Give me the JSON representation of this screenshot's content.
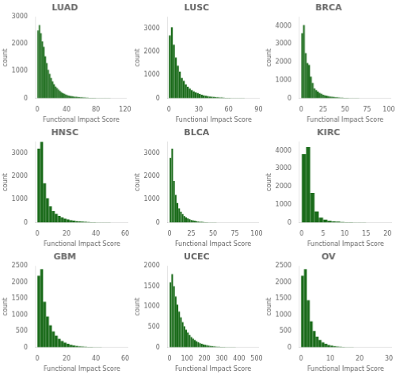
{
  "chart_data": [
    {
      "type": "histogram",
      "title": "LUAD",
      "xlabel": "Functional Impact Score",
      "ylabel": "count",
      "color": "#1a6b1a",
      "grid": false,
      "xlim": [
        -2,
        122
      ],
      "ylim": [
        0,
        3000
      ],
      "xticks": [
        0,
        40,
        80,
        120
      ],
      "yticks": [
        0,
        1000,
        2000,
        3000
      ],
      "bins": [
        0,
        2,
        4,
        6,
        8,
        10,
        12,
        14,
        16,
        18,
        20,
        22,
        24,
        26,
        28,
        30,
        32,
        34,
        36,
        38,
        40,
        42,
        44,
        46,
        48,
        50,
        52,
        54,
        56,
        58,
        60,
        62,
        64,
        66,
        68,
        70,
        72,
        74,
        76,
        78,
        80,
        82,
        84,
        86,
        88,
        90,
        92,
        94,
        96,
        98,
        100,
        102,
        104,
        106,
        108,
        110,
        112,
        114,
        116,
        118,
        120
      ],
      "values": [
        2500,
        2700,
        2400,
        2100,
        1900,
        1550,
        1300,
        1050,
        900,
        750,
        620,
        520,
        430,
        380,
        320,
        270,
        230,
        190,
        165,
        140,
        120,
        105,
        90,
        80,
        70,
        62,
        55,
        48,
        42,
        38,
        33,
        29,
        26,
        23,
        20,
        18,
        16,
        14,
        12,
        11,
        10,
        9,
        8,
        7,
        6,
        6,
        5,
        5,
        4,
        4,
        3,
        3,
        3,
        2,
        2,
        2,
        2,
        1,
        1,
        1
      ]
    },
    {
      "type": "histogram",
      "title": "LUSC",
      "xlabel": "Functional Impact Score",
      "ylabel": "count",
      "color": "#1a6b1a",
      "grid": false,
      "xlim": [
        -1,
        91
      ],
      "ylim": [
        0,
        3500
      ],
      "xticks": [
        0,
        30,
        60,
        90
      ],
      "yticks": [
        0,
        1000,
        2000,
        3000
      ],
      "bins": [
        0,
        2,
        4,
        6,
        8,
        10,
        12,
        14,
        16,
        18,
        20,
        22,
        24,
        26,
        28,
        30,
        32,
        34,
        36,
        38,
        40,
        42,
        44,
        46,
        48,
        50,
        52,
        54,
        56,
        58,
        60,
        62,
        64,
        66,
        68,
        70,
        72,
        74,
        76,
        78,
        80,
        82,
        84,
        86,
        88,
        90
      ],
      "values": [
        2700,
        3050,
        2300,
        1750,
        1400,
        1150,
        870,
        750,
        600,
        500,
        420,
        350,
        300,
        260,
        220,
        185,
        155,
        130,
        110,
        95,
        80,
        68,
        58,
        50,
        42,
        36,
        30,
        25,
        21,
        18,
        15,
        12,
        10,
        9,
        8,
        7,
        6,
        5,
        4,
        4,
        3,
        3,
        2,
        2,
        1
      ]
    },
    {
      "type": "histogram",
      "title": "BRCA",
      "xlabel": "Functional Impact Score",
      "ylabel": "count",
      "color": "#1a6b1a",
      "grid": false,
      "xlim": [
        -2,
        102
      ],
      "ylim": [
        0,
        4500
      ],
      "xticks": [
        0,
        25,
        50,
        75,
        100
      ],
      "yticks": [
        0,
        1000,
        2000,
        3000,
        4000
      ],
      "bins": [
        0,
        2,
        4,
        6,
        8,
        10,
        12,
        14,
        16,
        18,
        20,
        22,
        24,
        26,
        28,
        30,
        32,
        34,
        36,
        38,
        40,
        42,
        44,
        46,
        48,
        50,
        52,
        54,
        56,
        58,
        60,
        62,
        64,
        66,
        68,
        70,
        72,
        74,
        76,
        78,
        80,
        82,
        84,
        86,
        88,
        90,
        92,
        94,
        96,
        98,
        100
      ],
      "values": [
        3600,
        4050,
        2500,
        1950,
        1850,
        1200,
        850,
        550,
        450,
        370,
        300,
        250,
        200,
        170,
        145,
        120,
        100,
        85,
        72,
        60,
        50,
        42,
        35,
        29,
        24,
        20,
        17,
        14,
        12,
        10,
        8,
        7,
        6,
        5,
        4,
        4,
        3,
        3,
        2,
        2,
        2,
        1,
        1,
        1,
        1,
        1,
        1,
        1,
        1,
        1
      ]
    },
    {
      "type": "histogram",
      "title": "HNSC",
      "xlabel": "Functional Impact Score",
      "ylabel": "count",
      "color": "#1a6b1a",
      "grid": false,
      "xlim": [
        -1,
        62
      ],
      "ylim": [
        0,
        3500
      ],
      "xticks": [
        0,
        20,
        40,
        60
      ],
      "yticks": [
        0,
        1000,
        2000,
        3000
      ],
      "bins": [
        0,
        2,
        4,
        6,
        8,
        10,
        12,
        14,
        16,
        18,
        20,
        22,
        24,
        26,
        28,
        30,
        32,
        34,
        36,
        38,
        40,
        42,
        44,
        46,
        48,
        50,
        52,
        54,
        56,
        58,
        60
      ],
      "values": [
        3200,
        3500,
        1700,
        1050,
        700,
        500,
        380,
        290,
        225,
        175,
        135,
        105,
        82,
        64,
        50,
        39,
        30,
        24,
        19,
        15,
        12,
        9,
        7,
        6,
        5,
        4,
        3,
        3,
        2,
        1
      ]
    },
    {
      "type": "histogram",
      "title": "BLCA",
      "xlabel": "Functional Impact Score",
      "ylabel": "count",
      "color": "#1a6b1a",
      "grid": false,
      "xlim": [
        -2,
        102
      ],
      "ylim": [
        0,
        3500
      ],
      "xticks": [
        0,
        25,
        50,
        75,
        100
      ],
      "yticks": [
        0,
        1000,
        2000,
        3000
      ],
      "bins": [
        0,
        2,
        4,
        6,
        8,
        10,
        12,
        14,
        16,
        18,
        20,
        22,
        24,
        26,
        28,
        30,
        32,
        34,
        36,
        38,
        40,
        42,
        44,
        46,
        48,
        50,
        52,
        54,
        56,
        58,
        60,
        62,
        64,
        66,
        68,
        70,
        72,
        74,
        76,
        78,
        80,
        82,
        84,
        86,
        88,
        90,
        92,
        94,
        96,
        98,
        100
      ],
      "values": [
        2800,
        3200,
        1800,
        1200,
        850,
        620,
        470,
        365,
        285,
        225,
        180,
        145,
        115,
        92,
        74,
        59,
        47,
        38,
        30,
        24,
        19,
        15,
        12,
        10,
        8,
        6,
        5,
        4,
        3,
        3,
        2,
        2,
        2,
        1,
        1,
        1,
        1,
        1,
        1,
        1,
        1,
        1,
        1,
        1,
        1,
        1,
        1,
        1,
        1,
        1
      ]
    },
    {
      "type": "histogram",
      "title": "KIRC",
      "xlabel": "Functional Impact Score",
      "ylabel": "count",
      "color": "#1a6b1a",
      "grid": false,
      "xlim": [
        -0.5,
        21
      ],
      "ylim": [
        0,
        4500
      ],
      "xticks": [
        0,
        5,
        10,
        15,
        20
      ],
      "yticks": [
        0,
        1000,
        2000,
        3000,
        4000
      ],
      "bins": [
        0,
        1,
        2,
        3,
        4,
        5,
        6,
        7,
        8,
        9,
        10,
        11,
        12,
        13,
        14,
        15,
        16,
        17,
        18,
        19,
        20
      ],
      "values": [
        3800,
        4200,
        1650,
        620,
        280,
        160,
        100,
        70,
        50,
        35,
        25,
        18,
        13,
        9,
        7,
        5,
        4,
        3,
        2,
        1
      ]
    },
    {
      "type": "histogram",
      "title": "GBM",
      "xlabel": "Functional Impact Score",
      "ylabel": "count",
      "color": "#1a6b1a",
      "grid": false,
      "xlim": [
        -1,
        62
      ],
      "ylim": [
        0,
        2500
      ],
      "xticks": [
        0,
        20,
        40,
        60
      ],
      "yticks": [
        0,
        500,
        1000,
        1500,
        2000,
        2500
      ],
      "bins": [
        0,
        2,
        4,
        6,
        8,
        10,
        12,
        14,
        16,
        18,
        20,
        22,
        24,
        26,
        28,
        30,
        32,
        34,
        36,
        38,
        40,
        42,
        44,
        46,
        48,
        50,
        52,
        54,
        56,
        58,
        60
      ],
      "values": [
        2200,
        2400,
        1400,
        950,
        680,
        490,
        360,
        265,
        196,
        145,
        108,
        80,
        60,
        44,
        33,
        25,
        18,
        14,
        10,
        8,
        6,
        4,
        3,
        2,
        2,
        1,
        1,
        1,
        1,
        1
      ]
    },
    {
      "type": "histogram",
      "title": "UCEC",
      "xlabel": "Functional Impact Score",
      "ylabel": "count",
      "color": "#1a6b1a",
      "grid": false,
      "xlim": [
        -10,
        510
      ],
      "ylim": [
        0,
        2000
      ],
      "xticks": [
        0,
        100,
        200,
        300,
        400,
        500
      ],
      "yticks": [
        0,
        500,
        1000,
        1500,
        2000
      ],
      "bins": [
        0,
        10,
        20,
        30,
        40,
        50,
        60,
        70,
        80,
        90,
        100,
        110,
        120,
        130,
        140,
        150,
        160,
        170,
        180,
        190,
        200,
        210,
        220,
        230,
        240,
        250,
        260,
        270,
        280,
        290,
        300,
        310,
        320,
        330,
        340,
        350,
        360,
        370,
        380,
        390,
        400,
        410,
        420,
        430,
        440,
        450,
        460,
        470,
        480,
        490,
        500
      ],
      "values": [
        1600,
        1800,
        1500,
        1250,
        1050,
        880,
        740,
        620,
        520,
        435,
        365,
        305,
        255,
        215,
        180,
        150,
        126,
        105,
        88,
        74,
        62,
        52,
        43,
        36,
        30,
        25,
        21,
        17,
        14,
        12,
        10,
        8,
        7,
        6,
        5,
        4,
        3,
        3,
        2,
        2,
        2,
        1,
        1,
        1,
        1,
        1,
        1,
        1,
        1,
        1
      ]
    },
    {
      "type": "histogram",
      "title": "OV",
      "xlabel": "Functional Impact Score",
      "ylabel": "count",
      "color": "#1a6b1a",
      "grid": false,
      "xlim": [
        -0.5,
        31
      ],
      "ylim": [
        0,
        2500
      ],
      "xticks": [
        0,
        10,
        20,
        30
      ],
      "yticks": [
        0,
        500,
        1000,
        1500,
        2000,
        2500
      ],
      "bins": [
        0,
        1,
        2,
        3,
        4,
        5,
        6,
        7,
        8,
        9,
        10,
        11,
        12,
        13,
        14,
        15,
        16,
        17,
        18,
        19,
        20,
        21,
        22,
        23,
        24,
        25,
        26,
        27,
        28,
        29,
        30
      ],
      "values": [
        2200,
        2400,
        1450,
        800,
        500,
        330,
        225,
        155,
        108,
        75,
        52,
        36,
        25,
        18,
        12,
        9,
        6,
        4,
        3,
        2,
        2,
        1,
        1,
        1,
        1,
        1,
        1,
        1,
        1,
        1
      ]
    }
  ]
}
